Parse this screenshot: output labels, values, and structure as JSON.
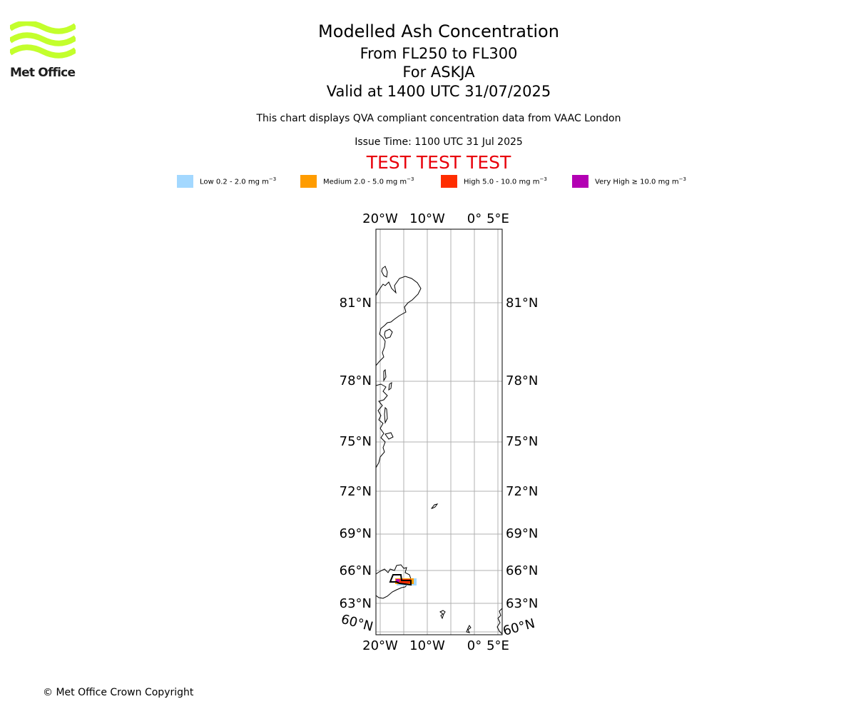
{
  "logo": {
    "text": "Met Office",
    "color": "#c3ff2c"
  },
  "header": {
    "title": "Modelled Ash Concentration",
    "levels": "From FL250 to FL300",
    "volcano": "For ASKJA",
    "valid": "Valid at 1400 UTC 31/07/2025",
    "description": "This chart displays QVA compliant concentration data from VAAC London",
    "issue_time": "Issue Time: 1100 UTC 31 Jul 2025",
    "test_banner": "TEST TEST TEST"
  },
  "legend": [
    {
      "label": "Low 0.2 - 2.0 mg m",
      "color": "#a3d8ff"
    },
    {
      "label": "Medium 2.0 - 5.0 mg m",
      "color": "#ff9c00"
    },
    {
      "label": "High 5.0 - 10.0 mg m",
      "color": "#ff2d00"
    },
    {
      "label": "Very High  ≥  10.0 mg m",
      "color": "#b300b3"
    }
  ],
  "legend_unit_exponent": "−3",
  "map": {
    "lon_labels": [
      "20°W",
      "10°W",
      "0°",
      "5°E"
    ],
    "lat_labels": [
      "81°N",
      "78°N",
      "75°N",
      "72°N",
      "69°N",
      "66°N",
      "63°N",
      "60°N"
    ],
    "grid_color": "#b0b0b0"
  },
  "footer": {
    "copyright": "© Met Office Crown Copyright"
  }
}
